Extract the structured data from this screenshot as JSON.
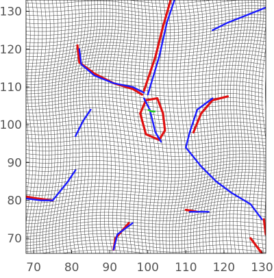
{
  "chart_data": {
    "type": "line",
    "title": "",
    "xlabel": "",
    "ylabel": "",
    "xlim": [
      68,
      131
    ],
    "ylim": [
      66,
      133
    ],
    "x_ticks": [
      70,
      80,
      90,
      100,
      110,
      120,
      130
    ],
    "y_ticks": [
      70,
      80,
      90,
      100,
      110,
      120,
      130
    ],
    "grid": "deformed mesh",
    "colors": {
      "mesh": "#222222",
      "red_contour": "#e01010",
      "blue_contour": "#1a1aff",
      "green_marker": "#22cc22",
      "axis_text": "#555555"
    },
    "series": [
      {
        "color": "red",
        "segments": [
          [
            [
              81.5,
              121
            ],
            [
              82,
              116.5
            ],
            [
              86,
              113.5
            ],
            [
              91,
              111
            ],
            [
              96,
              109.5
            ],
            [
              98.5,
              108
            ]
          ],
          [
            [
              106,
              133
            ],
            [
              104,
              126
            ],
            [
              102,
              118
            ],
            [
              99,
              109
            ]
          ],
          [
            [
              68,
              81
            ],
            [
              71,
              80.5
            ],
            [
              75,
              80
            ]
          ],
          [
            [
              98,
              103
            ],
            [
              99.5,
              97.5
            ],
            [
              103,
              96
            ],
            [
              104.5,
              98.5
            ],
            [
              104,
              103
            ],
            [
              102.5,
              107
            ],
            [
              99.5,
              106.5
            ],
            [
              98,
              103
            ]
          ],
          [
            [
              112,
              98
            ],
            [
              114,
              103
            ],
            [
              117,
              106.5
            ],
            [
              121,
              107.5
            ]
          ],
          [
            [
              91,
              67
            ],
            [
              91.5,
              70
            ],
            [
              95,
              74
            ]
          ],
          [
            [
              127,
              70
            ],
            [
              130,
              66
            ]
          ],
          [
            [
              110,
              77.5
            ],
            [
              113,
              77
            ]
          ],
          [
            [
              130.5,
              75
            ],
            [
              131,
              71
            ]
          ]
        ]
      },
      {
        "color": "blue",
        "segments": [
          [
            [
              82,
              120
            ],
            [
              82.5,
              116
            ],
            [
              86,
              113
            ],
            [
              91,
              111
            ],
            [
              96,
              110
            ],
            [
              99,
              108.5
            ]
          ],
          [
            [
              107,
              133
            ],
            [
              105,
              127
            ],
            [
              103,
              118
            ],
            [
              100,
              108
            ]
          ],
          [
            [
              68,
              80.5
            ],
            [
              72,
              80
            ],
            [
              75,
              80
            ]
          ],
          [
            [
              99,
              107
            ],
            [
              100.5,
              104
            ],
            [
              102,
              98
            ],
            [
              103.5,
              95.5
            ]
          ],
          [
            [
              110,
              94
            ],
            [
              111,
              98
            ],
            [
              113,
              104
            ],
            [
              117,
              107
            ]
          ],
          [
            [
              110,
              94
            ],
            [
              114,
              89
            ],
            [
              118,
              85
            ],
            [
              122,
              82
            ],
            [
              127,
              79
            ],
            [
              130,
              75
            ]
          ],
          [
            [
              75,
              80
            ],
            [
              79,
              85
            ],
            [
              81,
              88
            ]
          ],
          [
            [
              81,
              97
            ],
            [
              83,
              101
            ],
            [
              85,
              104
            ]
          ],
          [
            [
              91,
              67
            ],
            [
              92,
              71
            ],
            [
              96,
              74
            ]
          ],
          [
            [
              111,
              77
            ],
            [
              116,
              77
            ]
          ],
          [
            [
              117,
              125
            ],
            [
              121,
              127
            ],
            [
              126,
              129
            ],
            [
              131,
              131
            ]
          ]
        ]
      }
    ],
    "markers": [
      {
        "color": "green",
        "points": [
          [
            100,
            104
          ],
          [
            101,
            103.5
          ],
          [
            102,
            103.5
          ]
        ]
      }
    ]
  }
}
